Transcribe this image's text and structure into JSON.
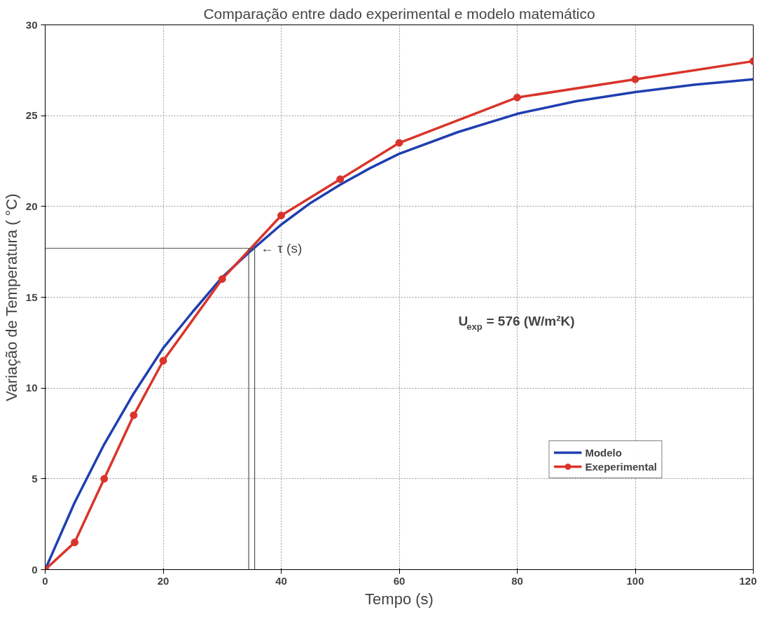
{
  "chart_data": {
    "type": "line",
    "title": "Comparação entre dado experimental e modelo matemático",
    "xlabel": "Tempo (s)",
    "ylabel": "Variação de Temperatura ( °C)",
    "xlim": [
      0,
      120
    ],
    "ylim": [
      0,
      30
    ],
    "xticks": [
      0,
      20,
      40,
      60,
      80,
      100,
      120
    ],
    "yticks": [
      0,
      5,
      10,
      15,
      20,
      25,
      30
    ],
    "grid": true,
    "legend": "bottom right",
    "line_style": "solid",
    "series": [
      {
        "name": "Modelo",
        "color": "#1f3fb0",
        "marker": "none",
        "x": [
          0,
          5,
          10,
          15,
          20,
          25,
          30,
          35,
          40,
          45,
          50,
          55,
          60,
          70,
          80,
          90,
          100,
          110,
          120
        ],
        "values": [
          0,
          3.7,
          6.9,
          9.7,
          12.2,
          14.2,
          16.1,
          17.6,
          19.0,
          20.2,
          21.2,
          22.1,
          22.9,
          24.1,
          25.1,
          25.8,
          26.3,
          26.7,
          27.0
        ]
      },
      {
        "name": "Exeperimental",
        "color": "#d9342b",
        "marker": "circle",
        "x": [
          0,
          5,
          10,
          15,
          20,
          30,
          40,
          50,
          60,
          80,
          100,
          120
        ],
        "values": [
          0,
          1.5,
          5,
          8.5,
          11.5,
          16,
          19.5,
          21.5,
          23.5,
          26,
          27,
          28
        ]
      },
      {
        "color": "#555555",
        "marker": "none",
        "x": [
          0,
          35.5,
          35.5
        ],
        "values": [
          17.7,
          17.7,
          0
        ]
      },
      {
        "color": "#555555",
        "marker": "none",
        "x": [
          34.5,
          34.5
        ],
        "values": [
          17.7,
          0
        ]
      }
    ],
    "annotations": [
      {
        "text": "← τ (s)",
        "x": 36.5,
        "y": 17.7
      },
      "U$_{exp}$ = 576 (W/m²K)"
    ]
  }
}
